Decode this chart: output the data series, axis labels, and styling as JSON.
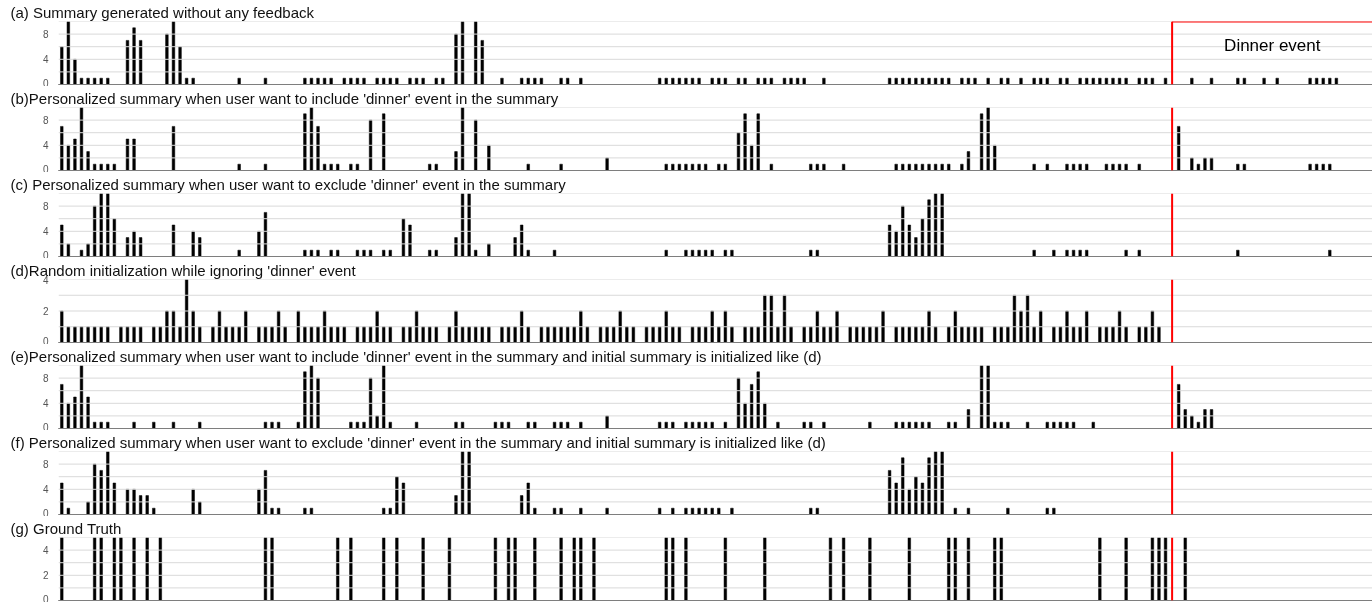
{
  "chart_data": [
    {
      "type": "bar",
      "title": "(a) Summary generated without any feedback",
      "color": "#000000",
      "ylim": [
        0,
        10
      ],
      "yticks": [
        0,
        {
          "value": 2,
          "label": null
        },
        4,
        {
          "value": 6,
          "label": null
        },
        8,
        {
          "value": 10,
          "label": null
        }
      ],
      "grid": "y",
      "tick_labels": "y",
      "annotations": [
        "Dinner event"
      ],
      "categories": [
        null,
        null,
        null,
        null,
        null,
        null,
        null,
        null,
        null,
        null,
        null,
        null,
        null,
        null,
        null,
        null,
        null,
        null,
        null,
        null,
        null,
        null,
        null,
        null,
        null,
        null,
        null,
        null,
        null,
        null,
        null,
        null,
        null,
        null,
        null,
        null,
        null,
        null,
        null,
        null,
        null,
        null,
        null,
        null,
        null,
        null,
        null,
        null,
        null,
        null,
        null,
        null,
        null,
        null,
        null,
        null,
        null,
        null,
        null,
        null,
        null,
        null,
        null,
        null,
        null,
        null,
        null,
        null,
        null,
        null,
        null,
        null,
        null,
        null,
        null,
        null,
        null,
        null,
        null,
        null,
        null,
        null,
        null,
        null,
        null,
        null,
        null,
        null,
        null,
        null,
        null,
        null,
        null,
        null,
        null,
        null,
        null,
        null,
        null,
        null,
        null,
        null,
        null,
        null,
        null,
        null,
        null,
        null,
        null,
        null,
        null,
        null,
        null,
        null,
        null,
        null,
        null,
        null,
        null,
        null,
        null,
        null,
        null,
        null,
        null,
        null,
        null,
        null,
        null,
        null,
        null,
        null,
        null,
        null,
        null,
        null,
        null,
        null,
        null,
        null,
        null,
        null,
        null,
        null,
        null,
        null,
        null,
        null,
        null,
        null,
        null,
        null,
        null,
        null,
        null,
        null,
        null,
        null,
        null,
        null,
        null,
        null,
        null,
        null,
        null,
        null,
        null,
        null,
        null,
        null,
        null,
        null,
        null,
        null,
        null,
        null,
        null,
        null,
        null,
        null,
        null,
        null,
        null,
        null,
        null,
        null,
        null,
        null,
        null,
        null,
        null,
        null,
        null,
        null,
        null,
        null,
        null,
        null,
        null,
        null
      ],
      "values": [
        6,
        10,
        4,
        1,
        1,
        1,
        1,
        1,
        0,
        0,
        7,
        9,
        7,
        0,
        0,
        0,
        8,
        10,
        6,
        1,
        1,
        0,
        0,
        0,
        0,
        0,
        0,
        1,
        0,
        0,
        0,
        1,
        0,
        0,
        0,
        0,
        0,
        1,
        1,
        1,
        1,
        1,
        0,
        1,
        1,
        1,
        1,
        0,
        1,
        1,
        1,
        1,
        0,
        1,
        1,
        1,
        0,
        1,
        1,
        0,
        8,
        10,
        0,
        10,
        7,
        0,
        0,
        1,
        0,
        0,
        1,
        1,
        1,
        1,
        0,
        0,
        1,
        1,
        0,
        1,
        0,
        0,
        0,
        0,
        0,
        0,
        0,
        0,
        0,
        0,
        0,
        1,
        1,
        1,
        1,
        1,
        1,
        1,
        0,
        1,
        1,
        1,
        0,
        1,
        1,
        0,
        1,
        1,
        1,
        0,
        1,
        1,
        1,
        1,
        0,
        0,
        1,
        0,
        0,
        0,
        0,
        0,
        0,
        0,
        0,
        0,
        1,
        1,
        1,
        1,
        1,
        1,
        1,
        1,
        1,
        1,
        0,
        1,
        1,
        1,
        0,
        1,
        0,
        1,
        1,
        0,
        1,
        0,
        1,
        1,
        1,
        0,
        1,
        1,
        0,
        1,
        1,
        1,
        1,
        1,
        1,
        1,
        1,
        0,
        1,
        1,
        1,
        0,
        1,
        0,
        0,
        0,
        1,
        0,
        0,
        1,
        0,
        0,
        0,
        1,
        1,
        0,
        0,
        1,
        0,
        1,
        0,
        0,
        0,
        0,
        1,
        1,
        1,
        1,
        1,
        0,
        0,
        0,
        0,
        0
      ]
    },
    {
      "type": "bar",
      "title": "(b)Personalized summary when user want to include 'dinner' event in the summary",
      "color": "#000000",
      "ylim": [
        0,
        10
      ],
      "yticks": [
        0,
        {
          "value": 2,
          "label": null
        },
        4,
        {
          "value": 6,
          "label": null
        },
        8,
        {
          "value": 10,
          "label": null
        }
      ],
      "grid": "y",
      "tick_labels": "y",
      "categories": [
        null,
        null,
        null,
        null,
        null,
        null,
        null,
        null,
        null,
        null,
        null,
        null,
        null,
        null,
        null,
        null,
        null,
        null,
        null,
        null,
        null,
        null,
        null,
        null,
        null,
        null,
        null,
        null,
        null,
        null,
        null,
        null,
        null,
        null,
        null,
        null,
        null,
        null,
        null,
        null,
        null,
        null,
        null,
        null,
        null,
        null,
        null,
        null,
        null,
        null,
        null,
        null,
        null,
        null,
        null,
        null,
        null,
        null,
        null,
        null,
        null,
        null,
        null,
        null,
        null,
        null,
        null,
        null,
        null,
        null,
        null,
        null,
        null,
        null,
        null,
        null,
        null,
        null,
        null,
        null,
        null,
        null,
        null,
        null,
        null,
        null,
        null,
        null,
        null,
        null,
        null,
        null,
        null,
        null,
        null,
        null,
        null,
        null,
        null,
        null,
        null,
        null,
        null,
        null,
        null,
        null,
        null,
        null,
        null,
        null,
        null,
        null,
        null,
        null,
        null,
        null,
        null,
        null,
        null,
        null,
        null,
        null,
        null,
        null,
        null,
        null,
        null,
        null,
        null,
        null,
        null,
        null,
        null,
        null,
        null,
        null,
        null,
        null,
        null,
        null,
        null,
        null,
        null,
        null,
        null,
        null,
        null,
        null,
        null,
        null,
        null,
        null,
        null,
        null,
        null,
        null,
        null,
        null,
        null,
        null,
        null,
        null,
        null,
        null,
        null,
        null,
        null,
        null,
        null,
        null,
        null,
        null,
        null,
        null,
        null,
        null,
        null,
        null,
        null,
        null,
        null,
        null,
        null,
        null,
        null,
        null,
        null,
        null,
        null,
        null,
        null,
        null,
        null,
        null,
        null,
        null,
        null,
        null,
        null,
        null
      ],
      "values": [
        7,
        4,
        5,
        10,
        3,
        1,
        1,
        1,
        1,
        0,
        5,
        5,
        0,
        0,
        0,
        0,
        0,
        7,
        0,
        0,
        0,
        0,
        0,
        0,
        0,
        0,
        0,
        1,
        0,
        0,
        0,
        1,
        0,
        0,
        0,
        0,
        0,
        9,
        10,
        7,
        1,
        1,
        1,
        0,
        1,
        1,
        0,
        8,
        0,
        9,
        0,
        0,
        0,
        0,
        0,
        0,
        1,
        1,
        0,
        0,
        3,
        10,
        0,
        8,
        0,
        4,
        0,
        0,
        0,
        0,
        0,
        1,
        0,
        0,
        0,
        0,
        1,
        0,
        0,
        0,
        0,
        0,
        0,
        2,
        0,
        0,
        0,
        0,
        0,
        0,
        0,
        0,
        1,
        1,
        1,
        1,
        1,
        1,
        1,
        0,
        1,
        1,
        0,
        6,
        9,
        4,
        9,
        0,
        1,
        0,
        0,
        0,
        0,
        0,
        1,
        1,
        1,
        0,
        0,
        1,
        0,
        0,
        0,
        0,
        0,
        0,
        0,
        1,
        1,
        1,
        1,
        1,
        1,
        1,
        1,
        1,
        0,
        1,
        3,
        0,
        9,
        10,
        4,
        0,
        0,
        0,
        0,
        0,
        1,
        0,
        1,
        0,
        0,
        1,
        1,
        1,
        1,
        0,
        0,
        1,
        1,
        1,
        1,
        0,
        1,
        0,
        0,
        0,
        0,
        0,
        7,
        0,
        2,
        1,
        2,
        2,
        0,
        0,
        0,
        1,
        1,
        0,
        0,
        0,
        0,
        0,
        0,
        0,
        0,
        0,
        1,
        1,
        1,
        1,
        0,
        0,
        0,
        0,
        0,
        0
      ]
    },
    {
      "type": "bar",
      "title": "(c) Personalized summary when user want to exclude 'dinner' event in the summary",
      "color": "#000000",
      "ylim": [
        0,
        10
      ],
      "yticks": [
        0,
        {
          "value": 2,
          "label": null
        },
        4,
        {
          "value": 6,
          "label": null
        },
        8,
        {
          "value": 10,
          "label": null
        }
      ],
      "grid": "y",
      "tick_labels": "y",
      "categories": [
        null,
        null,
        null,
        null,
        null,
        null,
        null,
        null,
        null,
        null,
        null,
        null,
        null,
        null,
        null,
        null,
        null,
        null,
        null,
        null,
        null,
        null,
        null,
        null,
        null,
        null,
        null,
        null,
        null,
        null,
        null,
        null,
        null,
        null,
        null,
        null,
        null,
        null,
        null,
        null,
        null,
        null,
        null,
        null,
        null,
        null,
        null,
        null,
        null,
        null,
        null,
        null,
        null,
        null,
        null,
        null,
        null,
        null,
        null,
        null,
        null,
        null,
        null,
        null,
        null,
        null,
        null,
        null,
        null,
        null,
        null,
        null,
        null,
        null,
        null,
        null,
        null,
        null,
        null,
        null,
        null,
        null,
        null,
        null,
        null,
        null,
        null,
        null,
        null,
        null,
        null,
        null,
        null,
        null,
        null,
        null,
        null,
        null,
        null,
        null,
        null,
        null,
        null,
        null,
        null,
        null,
        null,
        null,
        null,
        null,
        null,
        null,
        null,
        null,
        null,
        null,
        null,
        null,
        null,
        null,
        null,
        null,
        null,
        null,
        null,
        null,
        null,
        null,
        null,
        null,
        null,
        null,
        null,
        null,
        null,
        null,
        null,
        null,
        null,
        null,
        null,
        null,
        null,
        null,
        null,
        null,
        null,
        null,
        null,
        null,
        null,
        null,
        null,
        null,
        null,
        null,
        null,
        null,
        null,
        null,
        null,
        null,
        null,
        null,
        null,
        null,
        null,
        null,
        null,
        null,
        null,
        null,
        null,
        null,
        null,
        null,
        null,
        null,
        null,
        null,
        null,
        null,
        null,
        null,
        null,
        null,
        null,
        null,
        null,
        null,
        null,
        null,
        null,
        null,
        null,
        null,
        null,
        null,
        null,
        null
      ],
      "values": [
        5,
        2,
        0,
        1,
        2,
        8,
        10,
        10,
        6,
        0,
        3,
        4,
        3,
        0,
        0,
        0,
        0,
        5,
        0,
        0,
        4,
        3,
        0,
        0,
        0,
        0,
        0,
        1,
        0,
        0,
        4,
        7,
        0,
        0,
        0,
        0,
        0,
        1,
        1,
        1,
        0,
        1,
        1,
        0,
        0,
        1,
        1,
        1,
        0,
        1,
        1,
        0,
        6,
        5,
        0,
        0,
        1,
        1,
        0,
        0,
        3,
        10,
        10,
        1,
        0,
        2,
        0,
        0,
        0,
        3,
        5,
        1,
        0,
        0,
        0,
        1,
        0,
        0,
        0,
        0,
        0,
        0,
        0,
        0,
        0,
        0,
        0,
        0,
        0,
        0,
        0,
        0,
        1,
        0,
        0,
        1,
        1,
        1,
        1,
        1,
        0,
        1,
        1,
        0,
        0,
        0,
        0,
        0,
        0,
        0,
        0,
        0,
        0,
        0,
        1,
        1,
        0,
        0,
        0,
        0,
        0,
        0,
        0,
        0,
        0,
        0,
        5,
        4,
        8,
        5,
        3,
        6,
        9,
        10,
        10,
        0,
        0,
        0,
        0,
        0,
        0,
        0,
        0,
        0,
        0,
        0,
        0,
        0,
        1,
        0,
        0,
        1,
        0,
        1,
        1,
        1,
        1,
        0,
        0,
        0,
        0,
        0,
        1,
        0,
        1,
        0,
        0,
        0,
        0,
        0,
        0,
        0,
        0,
        0,
        0,
        0,
        0,
        0,
        0,
        1,
        0,
        0,
        0,
        0,
        0,
        0,
        0,
        0,
        0,
        0,
        0,
        0,
        0,
        1,
        0,
        0,
        0,
        0,
        0,
        0
      ]
    },
    {
      "type": "bar",
      "title": "(d)Random initialization while ignoring 'dinner' event",
      "color": "#000000",
      "ylim": [
        0,
        4
      ],
      "yticks": [
        0,
        {
          "value": 1,
          "label": null
        },
        2,
        {
          "value": 3,
          "label": null
        },
        4
      ],
      "grid": "y",
      "tick_labels": "y",
      "categories": [
        null,
        null,
        null,
        null,
        null,
        null,
        null,
        null,
        null,
        null,
        null,
        null,
        null,
        null,
        null,
        null,
        null,
        null,
        null,
        null,
        null,
        null,
        null,
        null,
        null,
        null,
        null,
        null,
        null,
        null,
        null,
        null,
        null,
        null,
        null,
        null,
        null,
        null,
        null,
        null,
        null,
        null,
        null,
        null,
        null,
        null,
        null,
        null,
        null,
        null,
        null,
        null,
        null,
        null,
        null,
        null,
        null,
        null,
        null,
        null,
        null,
        null,
        null,
        null,
        null,
        null,
        null,
        null,
        null,
        null,
        null,
        null,
        null,
        null,
        null,
        null,
        null,
        null,
        null,
        null,
        null,
        null,
        null,
        null,
        null,
        null,
        null,
        null,
        null,
        null,
        null,
        null,
        null,
        null,
        null,
        null,
        null,
        null,
        null,
        null,
        null,
        null,
        null,
        null,
        null,
        null,
        null,
        null,
        null,
        null,
        null,
        null,
        null,
        null,
        null,
        null,
        null,
        null,
        null,
        null,
        null,
        null,
        null,
        null,
        null,
        null,
        null,
        null,
        null,
        null,
        null,
        null,
        null,
        null,
        null,
        null,
        null,
        null,
        null,
        null,
        null,
        null,
        null,
        null,
        null,
        null,
        null,
        null,
        null,
        null,
        null,
        null,
        null,
        null,
        null,
        null,
        null,
        null,
        null,
        null,
        null,
        null,
        null,
        null,
        null,
        null,
        null,
        null,
        null,
        null,
        null,
        null,
        null,
        null,
        null,
        null,
        null,
        null,
        null,
        null,
        null,
        null,
        null,
        null,
        null,
        null,
        null,
        null,
        null,
        null,
        null,
        null,
        null,
        null,
        null,
        null,
        null,
        null,
        null,
        null
      ],
      "values": [
        2,
        1,
        1,
        1,
        1,
        1,
        1,
        1,
        0,
        1,
        1,
        1,
        1,
        0,
        1,
        1,
        2,
        2,
        1,
        4,
        2,
        1,
        0,
        1,
        2,
        1,
        1,
        1,
        2,
        0,
        1,
        1,
        1,
        2,
        1,
        0,
        2,
        1,
        1,
        1,
        2,
        1,
        1,
        1,
        0,
        1,
        1,
        1,
        2,
        1,
        1,
        0,
        1,
        1,
        2,
        1,
        1,
        1,
        0,
        1,
        2,
        1,
        1,
        1,
        1,
        1,
        0,
        1,
        1,
        1,
        2,
        1,
        0,
        1,
        1,
        1,
        1,
        1,
        1,
        2,
        1,
        0,
        1,
        1,
        1,
        2,
        1,
        1,
        0,
        1,
        1,
        1,
        2,
        1,
        1,
        0,
        1,
        1,
        1,
        2,
        1,
        2,
        1,
        0,
        1,
        1,
        1,
        3,
        3,
        1,
        3,
        1,
        0,
        1,
        1,
        2,
        1,
        1,
        2,
        0,
        1,
        1,
        1,
        1,
        1,
        2,
        0,
        1,
        1,
        1,
        1,
        1,
        2,
        1,
        0,
        1,
        2,
        1,
        1,
        1,
        1,
        0,
        1,
        1,
        1,
        3,
        2,
        3,
        1,
        2,
        0,
        1,
        1,
        2,
        1,
        1,
        2,
        0,
        1,
        1,
        1,
        2,
        1,
        0,
        1,
        1,
        2,
        1,
        0,
        0,
        0,
        0,
        0,
        0,
        0,
        0,
        0,
        0,
        0,
        0,
        0,
        0,
        0,
        0,
        0,
        0,
        0,
        0,
        0,
        0,
        0,
        0,
        0,
        0,
        0,
        0,
        0,
        0,
        0,
        0
      ]
    },
    {
      "type": "bar",
      "title": "(e)Personalized summary when user want to include 'dinner' event in the summary and initial summary is initialized like (d)",
      "color": "#000000",
      "ylim": [
        0,
        10
      ],
      "yticks": [
        0,
        {
          "value": 2,
          "label": null
        },
        4,
        {
          "value": 6,
          "label": null
        },
        8,
        {
          "value": 10,
          "label": null
        }
      ],
      "grid": "y",
      "tick_labels": "y",
      "categories": [
        null,
        null,
        null,
        null,
        null,
        null,
        null,
        null,
        null,
        null,
        null,
        null,
        null,
        null,
        null,
        null,
        null,
        null,
        null,
        null,
        null,
        null,
        null,
        null,
        null,
        null,
        null,
        null,
        null,
        null,
        null,
        null,
        null,
        null,
        null,
        null,
        null,
        null,
        null,
        null,
        null,
        null,
        null,
        null,
        null,
        null,
        null,
        null,
        null,
        null,
        null,
        null,
        null,
        null,
        null,
        null,
        null,
        null,
        null,
        null,
        null,
        null,
        null,
        null,
        null,
        null,
        null,
        null,
        null,
        null,
        null,
        null,
        null,
        null,
        null,
        null,
        null,
        null,
        null,
        null,
        null,
        null,
        null,
        null,
        null,
        null,
        null,
        null,
        null,
        null,
        null,
        null,
        null,
        null,
        null,
        null,
        null,
        null,
        null,
        null,
        null,
        null,
        null,
        null,
        null,
        null,
        null,
        null,
        null,
        null,
        null,
        null,
        null,
        null,
        null,
        null,
        null,
        null,
        null,
        null,
        null,
        null,
        null,
        null,
        null,
        null,
        null,
        null,
        null,
        null,
        null,
        null,
        null,
        null,
        null,
        null,
        null,
        null,
        null,
        null,
        null,
        null,
        null,
        null,
        null,
        null,
        null,
        null,
        null,
        null,
        null,
        null,
        null,
        null,
        null,
        null,
        null,
        null,
        null,
        null,
        null,
        null,
        null,
        null,
        null,
        null,
        null,
        null,
        null,
        null,
        null,
        null,
        null,
        null,
        null,
        null,
        null,
        null,
        null,
        null,
        null,
        null,
        null,
        null,
        null,
        null,
        null,
        null,
        null,
        null,
        null,
        null,
        null,
        null,
        null,
        null,
        null,
        null,
        null,
        null
      ],
      "values": [
        7,
        4,
        5,
        10,
        5,
        1,
        1,
        1,
        0,
        0,
        0,
        1,
        0,
        0,
        1,
        0,
        0,
        1,
        0,
        0,
        0,
        1,
        0,
        0,
        0,
        0,
        0,
        0,
        0,
        0,
        0,
        1,
        1,
        1,
        0,
        0,
        1,
        9,
        10,
        8,
        0,
        0,
        0,
        0,
        1,
        1,
        1,
        8,
        2,
        10,
        1,
        0,
        0,
        0,
        1,
        0,
        0,
        0,
        0,
        0,
        1,
        1,
        0,
        0,
        0,
        0,
        1,
        1,
        1,
        0,
        0,
        1,
        1,
        0,
        0,
        1,
        1,
        1,
        0,
        1,
        0,
        0,
        0,
        2,
        0,
        0,
        0,
        0,
        0,
        0,
        0,
        1,
        1,
        1,
        0,
        1,
        1,
        1,
        1,
        1,
        0,
        1,
        0,
        8,
        4,
        7,
        9,
        4,
        0,
        1,
        0,
        0,
        0,
        1,
        1,
        0,
        1,
        0,
        0,
        0,
        0,
        0,
        0,
        1,
        0,
        0,
        0,
        1,
        1,
        1,
        1,
        1,
        1,
        0,
        0,
        1,
        1,
        0,
        3,
        0,
        10,
        10,
        1,
        1,
        1,
        0,
        0,
        1,
        0,
        0,
        1,
        1,
        1,
        1,
        1,
        0,
        0,
        1,
        0,
        0,
        0,
        0,
        0,
        0,
        0,
        0,
        0,
        0,
        0,
        0,
        7,
        3,
        2,
        1,
        3,
        3,
        0,
        0,
        0,
        0,
        0,
        0,
        0,
        0,
        0,
        0,
        0,
        0,
        0,
        0,
        0,
        0,
        0,
        0,
        0,
        0,
        0,
        0,
        0,
        0
      ]
    },
    {
      "type": "bar",
      "title": "(f) Personalized summary when user want to exclude 'dinner' event in the summary and  initial summary is initialized like (d)",
      "color": "#000000",
      "ylim": [
        0,
        10
      ],
      "yticks": [
        0,
        {
          "value": 2,
          "label": null
        },
        4,
        {
          "value": 6,
          "label": null
        },
        8,
        {
          "value": 10,
          "label": null
        }
      ],
      "grid": "y",
      "tick_labels": "y",
      "categories": [
        null,
        null,
        null,
        null,
        null,
        null,
        null,
        null,
        null,
        null,
        null,
        null,
        null,
        null,
        null,
        null,
        null,
        null,
        null,
        null,
        null,
        null,
        null,
        null,
        null,
        null,
        null,
        null,
        null,
        null,
        null,
        null,
        null,
        null,
        null,
        null,
        null,
        null,
        null,
        null,
        null,
        null,
        null,
        null,
        null,
        null,
        null,
        null,
        null,
        null,
        null,
        null,
        null,
        null,
        null,
        null,
        null,
        null,
        null,
        null,
        null,
        null,
        null,
        null,
        null,
        null,
        null,
        null,
        null,
        null,
        null,
        null,
        null,
        null,
        null,
        null,
        null,
        null,
        null,
        null,
        null,
        null,
        null,
        null,
        null,
        null,
        null,
        null,
        null,
        null,
        null,
        null,
        null,
        null,
        null,
        null,
        null,
        null,
        null,
        null,
        null,
        null,
        null,
        null,
        null,
        null,
        null,
        null,
        null,
        null,
        null,
        null,
        null,
        null,
        null,
        null,
        null,
        null,
        null,
        null,
        null,
        null,
        null,
        null,
        null,
        null,
        null,
        null,
        null,
        null,
        null,
        null,
        null,
        null,
        null,
        null,
        null,
        null,
        null,
        null,
        null,
        null,
        null,
        null,
        null,
        null,
        null,
        null,
        null,
        null,
        null,
        null,
        null,
        null,
        null,
        null,
        null,
        null,
        null,
        null,
        null,
        null,
        null,
        null,
        null,
        null,
        null,
        null,
        null,
        null,
        null,
        null,
        null,
        null,
        null,
        null,
        null,
        null,
        null,
        null,
        null,
        null,
        null,
        null,
        null,
        null,
        null,
        null,
        null,
        null,
        null,
        null,
        null,
        null,
        null,
        null,
        null,
        null,
        null,
        null
      ],
      "values": [
        5,
        1,
        0,
        0,
        2,
        8,
        7,
        10,
        5,
        0,
        4,
        4,
        3,
        3,
        1,
        0,
        0,
        0,
        0,
        0,
        4,
        2,
        0,
        0,
        0,
        0,
        0,
        0,
        0,
        0,
        4,
        7,
        1,
        1,
        0,
        0,
        0,
        1,
        1,
        0,
        0,
        0,
        0,
        0,
        0,
        0,
        0,
        0,
        0,
        1,
        1,
        6,
        5,
        0,
        0,
        0,
        0,
        0,
        0,
        0,
        3,
        10,
        10,
        0,
        0,
        0,
        0,
        0,
        0,
        0,
        3,
        5,
        1,
        0,
        0,
        1,
        1,
        0,
        0,
        1,
        0,
        0,
        0,
        1,
        0,
        0,
        0,
        0,
        0,
        0,
        0,
        1,
        0,
        1,
        0,
        1,
        1,
        1,
        1,
        1,
        1,
        0,
        1,
        0,
        0,
        0,
        0,
        0,
        0,
        0,
        0,
        0,
        0,
        0,
        1,
        1,
        0,
        0,
        0,
        0,
        0,
        0,
        0,
        0,
        0,
        0,
        7,
        5,
        9,
        4,
        6,
        5,
        9,
        10,
        10,
        0,
        1,
        0,
        1,
        0,
        0,
        0,
        0,
        0,
        1,
        0,
        0,
        0,
        0,
        0,
        1,
        1,
        0,
        0,
        0,
        0,
        0,
        0,
        0,
        0,
        0,
        0,
        0,
        0,
        0,
        0,
        0,
        0,
        0,
        0,
        0,
        0,
        0,
        0,
        0,
        0,
        0,
        0,
        0,
        0,
        0,
        0,
        0,
        0,
        0,
        0,
        0,
        0,
        0,
        0,
        0,
        0,
        0,
        0,
        0,
        0,
        0,
        0,
        0,
        0
      ]
    },
    {
      "type": "bar",
      "title": "(g) Ground Truth",
      "color": "#000000",
      "ylim": [
        0,
        5
      ],
      "yticks": [
        0,
        {
          "value": 1,
          "label": null
        },
        2,
        {
          "value": 3,
          "label": null
        },
        4,
        {
          "value": 5,
          "label": null
        }
      ],
      "grid": "y",
      "tick_labels": "y",
      "categories": [
        null,
        null,
        null,
        null,
        null,
        null,
        null,
        null,
        null,
        null,
        null,
        null,
        null,
        null,
        null,
        null,
        null,
        null,
        null,
        null,
        null,
        null,
        null,
        null,
        null,
        null,
        null,
        null,
        null,
        null,
        null,
        null,
        null,
        null,
        null,
        null,
        null,
        null,
        null,
        null,
        null,
        null,
        null,
        null,
        null,
        null,
        null,
        null,
        null,
        null,
        null,
        null,
        null,
        null,
        null,
        null,
        null,
        null,
        null,
        null,
        null,
        null,
        null,
        null,
        null,
        null,
        null,
        null,
        null,
        null,
        null,
        null,
        null,
        null,
        null,
        null,
        null,
        null,
        null,
        null,
        null,
        null,
        null,
        null,
        null,
        null,
        null,
        null,
        null,
        null,
        null,
        null,
        null,
        null,
        null,
        null,
        null,
        null,
        null,
        null,
        null,
        null,
        null,
        null,
        null,
        null,
        null,
        null,
        null,
        null,
        null,
        null,
        null,
        null,
        null,
        null,
        null,
        null,
        null,
        null,
        null,
        null,
        null,
        null,
        null,
        null,
        null,
        null,
        null,
        null,
        null,
        null,
        null,
        null,
        null,
        null,
        null,
        null,
        null,
        null,
        null,
        null,
        null,
        null,
        null,
        null,
        null,
        null,
        null,
        null,
        null,
        null,
        null,
        null,
        null,
        null,
        null,
        null,
        null,
        null,
        null,
        null,
        null,
        null,
        null,
        null,
        null,
        null,
        null,
        null,
        null,
        null,
        null,
        null,
        null,
        null,
        null,
        null,
        null,
        null,
        null,
        null,
        null,
        null,
        null,
        null,
        null,
        null,
        null,
        null,
        null,
        null,
        null,
        null,
        null,
        null,
        null,
        null,
        null,
        null
      ],
      "values": [
        5,
        0,
        0,
        0,
        0,
        5,
        5,
        0,
        5,
        5,
        0,
        5,
        0,
        5,
        0,
        5,
        0,
        0,
        0,
        0,
        0,
        0,
        0,
        0,
        0,
        0,
        0,
        0,
        0,
        0,
        0,
        5,
        5,
        0,
        0,
        0,
        0,
        0,
        0,
        0,
        0,
        0,
        5,
        0,
        5,
        0,
        0,
        0,
        0,
        5,
        0,
        5,
        0,
        0,
        0,
        5,
        0,
        0,
        0,
        5,
        0,
        0,
        0,
        0,
        0,
        0,
        5,
        0,
        5,
        5,
        0,
        0,
        5,
        0,
        0,
        0,
        5,
        0,
        5,
        5,
        0,
        5,
        0,
        0,
        0,
        0,
        0,
        0,
        0,
        0,
        0,
        0,
        5,
        5,
        0,
        5,
        0,
        0,
        0,
        0,
        0,
        5,
        0,
        0,
        0,
        0,
        0,
        5,
        0,
        0,
        0,
        0,
        0,
        0,
        0,
        0,
        0,
        5,
        0,
        5,
        0,
        0,
        0,
        5,
        0,
        0,
        0,
        0,
        0,
        5,
        0,
        0,
        0,
        0,
        0,
        5,
        5,
        0,
        5,
        0,
        0,
        0,
        5,
        5,
        0,
        0,
        0,
        0,
        0,
        0,
        0,
        0,
        0,
        0,
        0,
        0,
        0,
        0,
        5,
        0,
        0,
        0,
        5,
        0,
        0,
        0,
        5,
        5,
        5,
        0,
        0,
        5,
        0,
        0,
        0,
        0,
        0,
        0,
        0,
        0,
        0,
        0,
        0,
        0,
        0,
        0,
        0,
        0,
        0,
        0,
        0,
        0,
        0,
        0,
        0,
        0,
        0,
        0,
        0,
        0
      ]
    }
  ]
}
